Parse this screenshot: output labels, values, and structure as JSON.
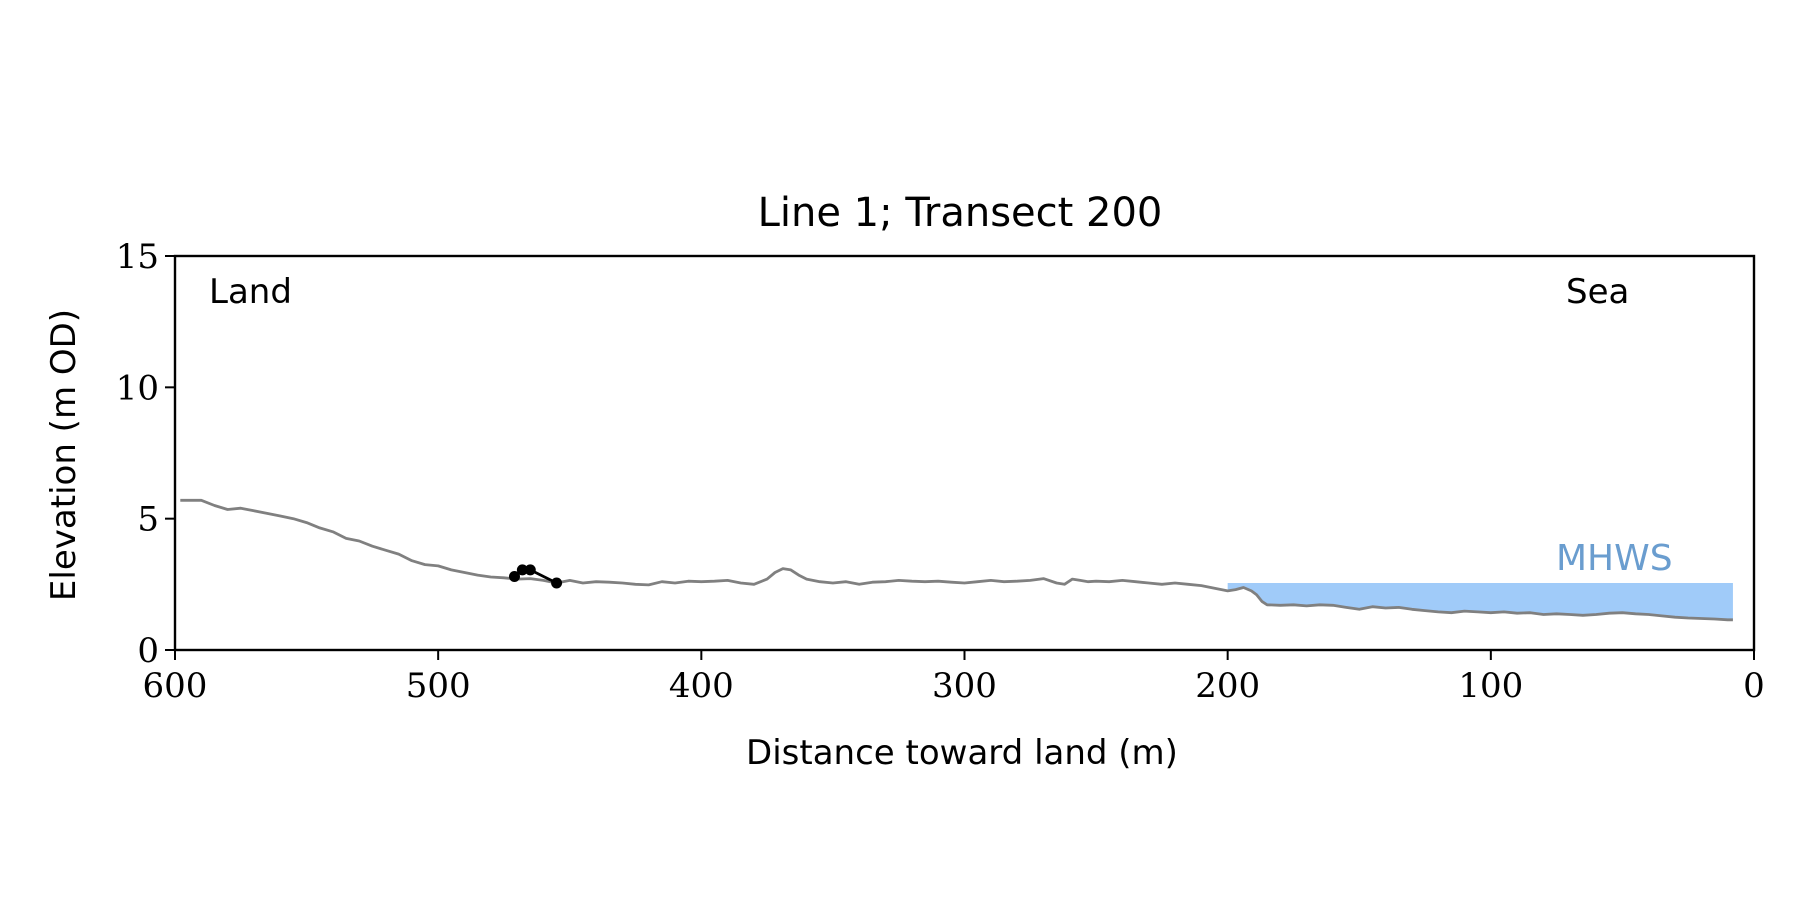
{
  "chart_data": {
    "type": "line",
    "title": "Line 1; Transect 200",
    "xlabel": "Distance toward land (m)",
    "ylabel": "Elevation (m OD)",
    "xlim": [
      600,
      0
    ],
    "ylim": [
      0,
      15
    ],
    "x_reversed": true,
    "x_ticks": [
      600,
      500,
      400,
      300,
      200,
      100,
      0
    ],
    "y_ticks": [
      0,
      5,
      10,
      15
    ],
    "grid": false,
    "annotations": {
      "land_label": "Land",
      "sea_label": "Sea",
      "mhws_label": "MHWS"
    },
    "mhws": {
      "elevation": 2.55,
      "x_from": 200,
      "x_to": 8
    },
    "colors": {
      "profile": "#808080",
      "highlight": "#000000",
      "mhws_fill": "#a0cbf9",
      "mhws_text": "#6a9dcf",
      "axis": "#000000"
    },
    "series": [
      {
        "x": [
          598,
          590,
          585,
          580,
          575,
          570,
          565,
          560,
          555,
          550,
          545,
          540,
          535,
          530,
          525,
          520,
          515,
          510,
          505,
          500,
          495,
          490,
          485,
          480,
          475,
          470,
          465,
          460,
          455,
          450,
          445,
          440,
          435,
          430,
          425,
          420,
          415,
          410,
          405,
          400,
          395,
          390,
          385,
          380,
          375,
          372,
          369,
          366,
          363,
          360,
          355,
          350,
          345,
          340,
          335,
          330,
          325,
          320,
          315,
          310,
          305,
          300,
          295,
          290,
          285,
          280,
          275,
          270,
          265,
          262,
          259,
          256,
          253,
          250,
          245,
          240,
          235,
          230,
          225,
          220,
          215,
          210,
          205,
          200,
          197,
          194,
          191,
          189,
          187,
          185,
          180,
          175,
          170,
          165,
          160,
          155,
          150,
          145,
          140,
          135,
          130,
          125,
          120,
          115,
          110,
          105,
          100,
          95,
          90,
          85,
          80,
          75,
          70,
          65,
          60,
          55,
          50,
          45,
          40,
          35,
          30,
          25,
          20,
          15,
          10,
          8
        ],
        "y": [
          5.7,
          5.7,
          5.5,
          5.35,
          5.4,
          5.3,
          5.2,
          5.1,
          5.0,
          4.85,
          4.65,
          4.5,
          4.25,
          4.15,
          3.95,
          3.8,
          3.65,
          3.4,
          3.25,
          3.2,
          3.05,
          2.95,
          2.85,
          2.78,
          2.75,
          2.7,
          2.72,
          2.65,
          2.55,
          2.65,
          2.55,
          2.6,
          2.58,
          2.55,
          2.5,
          2.48,
          2.6,
          2.55,
          2.62,
          2.6,
          2.62,
          2.65,
          2.55,
          2.5,
          2.7,
          2.95,
          3.1,
          3.05,
          2.85,
          2.7,
          2.6,
          2.55,
          2.6,
          2.5,
          2.58,
          2.6,
          2.65,
          2.62,
          2.6,
          2.62,
          2.58,
          2.55,
          2.6,
          2.65,
          2.6,
          2.62,
          2.65,
          2.72,
          2.55,
          2.5,
          2.7,
          2.65,
          2.6,
          2.62,
          2.6,
          2.65,
          2.6,
          2.55,
          2.5,
          2.55,
          2.5,
          2.45,
          2.35,
          2.25,
          2.3,
          2.38,
          2.25,
          2.1,
          1.85,
          1.72,
          1.7,
          1.72,
          1.68,
          1.72,
          1.7,
          1.62,
          1.55,
          1.65,
          1.6,
          1.62,
          1.55,
          1.5,
          1.45,
          1.42,
          1.48,
          1.45,
          1.42,
          1.45,
          1.4,
          1.42,
          1.35,
          1.38,
          1.35,
          1.32,
          1.35,
          1.4,
          1.42,
          1.38,
          1.35,
          1.3,
          1.25,
          1.22,
          1.2,
          1.18,
          1.15,
          1.15
        ]
      },
      {
        "x": [
          471,
          468,
          465,
          455
        ],
        "y": [
          2.8,
          3.05,
          3.05,
          2.55
        ],
        "markers": true
      }
    ]
  }
}
